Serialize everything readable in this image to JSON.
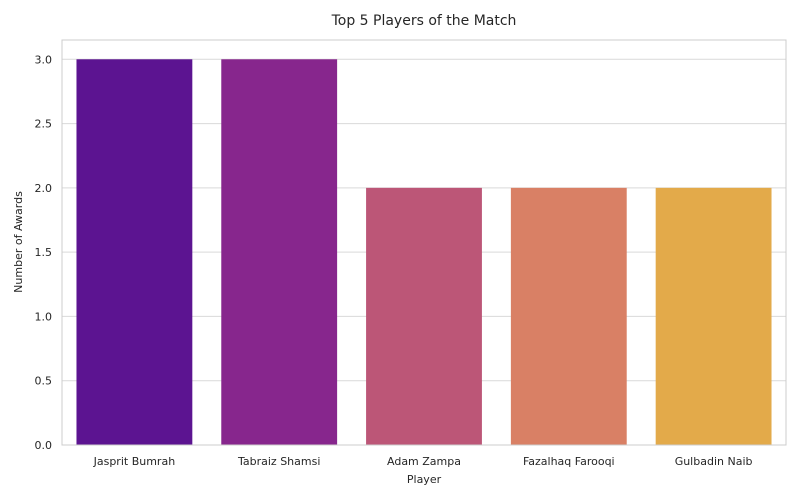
{
  "chart_data": {
    "type": "bar",
    "title": "Top 5 Players of the Match",
    "xlabel": "Player",
    "ylabel": "Number of Awards",
    "categories": [
      "Jasprit Bumrah",
      "Tabraiz Shamsi",
      "Adam Zampa",
      "Fazalhaq Farooqi",
      "Gulbadin Naib"
    ],
    "values": [
      3,
      3,
      2,
      2,
      2
    ],
    "colors": [
      "#5c1491",
      "#87268d",
      "#bc5677",
      "#d98065",
      "#e3aa4a"
    ],
    "ylim": [
      0,
      3.15
    ],
    "yticks": [
      0.0,
      0.5,
      1.0,
      1.5,
      2.0,
      2.5,
      3.0
    ],
    "ytick_labels": [
      "0.0",
      "0.5",
      "1.0",
      "1.5",
      "2.0",
      "2.5",
      "3.0"
    ],
    "grid": true,
    "grid_axis": "y",
    "legend": "none"
  }
}
